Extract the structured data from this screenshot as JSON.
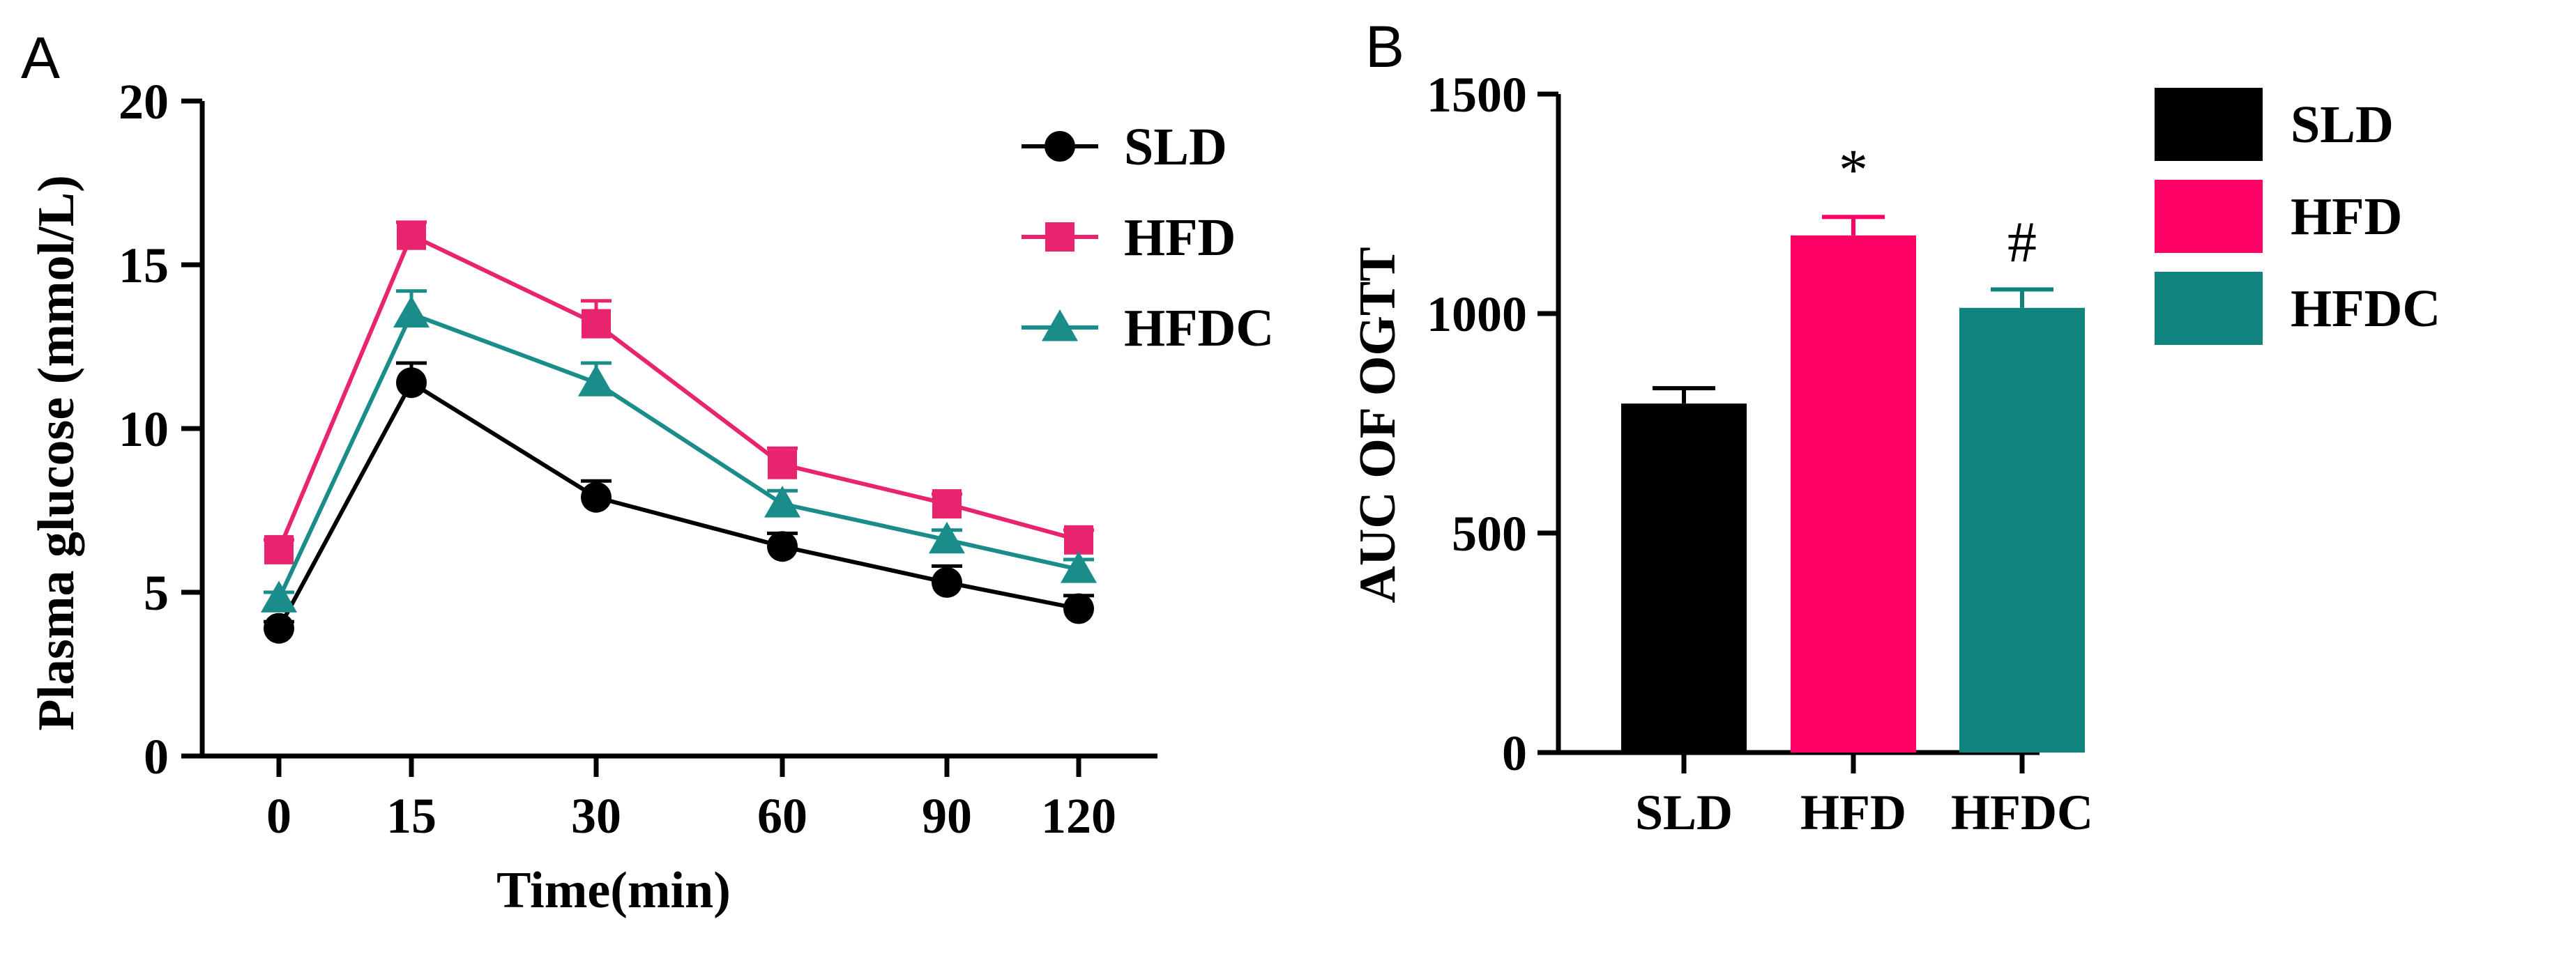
{
  "colors": {
    "SLD": "#000000",
    "HFD": "#e8246f",
    "HFDC": "#1a8c8a",
    "HFD_bar": "#ff0066",
    "HFDC_bar": "#11837f",
    "axis": "#000000"
  },
  "chart_data": [
    {
      "panel": "A",
      "type": "line",
      "xlabel": "Time(min)",
      "ylabel": "Plasma glucose (mmol/L)",
      "categories": [
        "0",
        "15",
        "30",
        "60",
        "90",
        "120"
      ],
      "ylim": [
        0,
        20
      ],
      "yticks": [
        "0",
        "5",
        "10",
        "15",
        "20"
      ],
      "legend_position": "top-right",
      "series": [
        {
          "name": "SLD",
          "marker": "circle",
          "values": [
            3.9,
            11.4,
            7.9,
            6.4,
            5.3,
            4.5
          ],
          "errors": [
            0.2,
            0.6,
            0.5,
            0.4,
            0.5,
            0.4
          ]
        },
        {
          "name": "HFD",
          "marker": "square",
          "values": [
            6.3,
            15.9,
            13.2,
            8.9,
            7.7,
            6.6
          ],
          "errors": [
            0.3,
            0.4,
            0.7,
            0.5,
            0.3,
            0.3
          ]
        },
        {
          "name": "HFDC",
          "marker": "triangle",
          "values": [
            4.8,
            13.5,
            11.4,
            7.7,
            6.6,
            5.7
          ],
          "errors": [
            0.2,
            0.7,
            0.6,
            0.4,
            0.3,
            0.3
          ]
        }
      ]
    },
    {
      "panel": "B",
      "type": "bar",
      "xlabel": "",
      "ylabel": "AUC OF OGTT",
      "categories": [
        "SLD",
        "HFD",
        "HFDC"
      ],
      "values": [
        795,
        1178,
        1013
      ],
      "errors": [
        35,
        42,
        42
      ],
      "annotations": [
        "",
        "*",
        "#"
      ],
      "ylim": [
        0,
        1500
      ],
      "yticks": [
        "0",
        "500",
        "1000",
        "1500"
      ],
      "legend_position": "right",
      "legend": [
        "SLD",
        "HFD",
        "HFDC"
      ]
    }
  ]
}
